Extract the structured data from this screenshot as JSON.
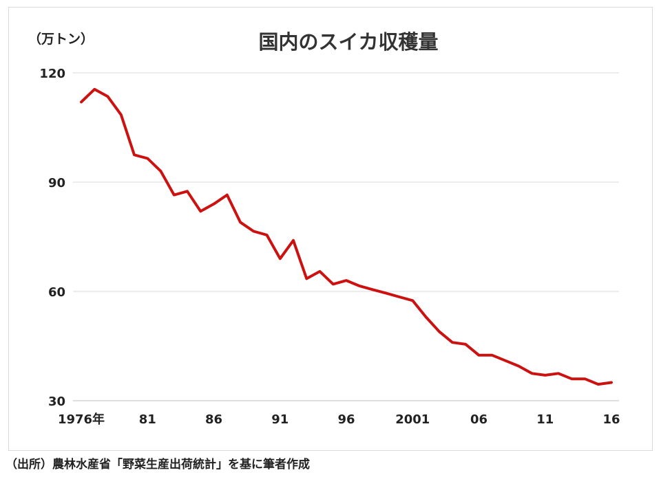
{
  "chart_data": {
    "type": "line",
    "title": "国内のスイカ収穫量",
    "unit_label": "（万トン）",
    "ylim": [
      30,
      120
    ],
    "yticks": [
      "120",
      "90",
      "60",
      "30"
    ],
    "ytick_values": [
      120,
      90,
      60,
      30
    ],
    "xlim": [
      1976,
      2016
    ],
    "xticks": [
      {
        "year": 1976,
        "label": "1976年"
      },
      {
        "year": 1981,
        "label": "81"
      },
      {
        "year": 1986,
        "label": "86"
      },
      {
        "year": 1991,
        "label": "91"
      },
      {
        "year": 1996,
        "label": "96"
      },
      {
        "year": 2001,
        "label": "2001"
      },
      {
        "year": 2006,
        "label": "06"
      },
      {
        "year": 2011,
        "label": "11"
      },
      {
        "year": 2016,
        "label": "16"
      }
    ],
    "grid": true,
    "series": [
      {
        "color": "#cc1111",
        "x": [
          1976,
          1977,
          1978,
          1979,
          1980,
          1981,
          1982,
          1983,
          1984,
          1985,
          1986,
          1987,
          1988,
          1989,
          1990,
          1991,
          1992,
          1993,
          1994,
          1995,
          1996,
          1997,
          1998,
          1999,
          2000,
          2001,
          2002,
          2003,
          2004,
          2005,
          2006,
          2007,
          2008,
          2009,
          2010,
          2011,
          2012,
          2013,
          2014,
          2015,
          2016
        ],
        "values": [
          112,
          115.5,
          113.5,
          108.5,
          97.5,
          96.5,
          93,
          86.5,
          87.5,
          82,
          84,
          86.5,
          79,
          76.5,
          75.5,
          69,
          74,
          63.5,
          65.5,
          62,
          63,
          61.5,
          60.5,
          59.5,
          58.5,
          57.5,
          53,
          49,
          46,
          45.5,
          42.5,
          42.5,
          41,
          39.5,
          37.5,
          37,
          37.5,
          36,
          36,
          34.5,
          35
        ]
      }
    ]
  },
  "source_note": "（出所）農林水産省「野菜生産出荷統計」を基に筆者作成"
}
